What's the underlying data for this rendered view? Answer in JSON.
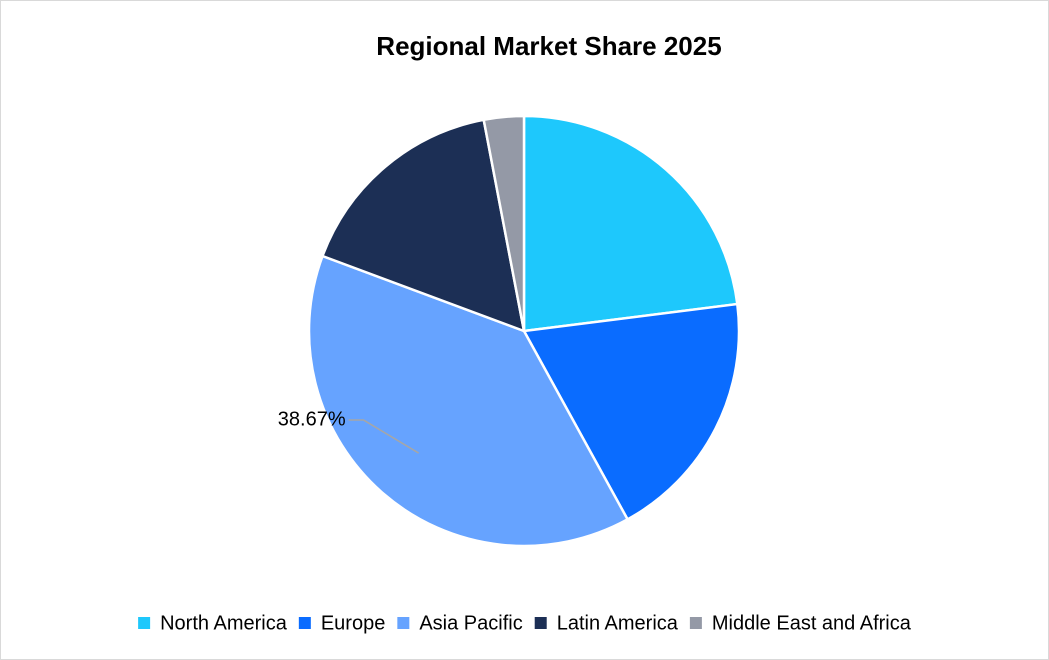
{
  "chart_data": {
    "type": "pie",
    "title": "Regional Market Share 2025",
    "categories": [
      "North America",
      "Europe",
      "Asia Pacific",
      "Latin America",
      "Middle East and Africa"
    ],
    "values": [
      23,
      19,
      38.67,
      16.33,
      3
    ],
    "value_labels": [
      null,
      null,
      "38.67%",
      null,
      null
    ],
    "colors": [
      "#1ec8fc",
      "#0a6cff",
      "#66a3ff",
      "#1c2f55",
      "#9499a6"
    ],
    "legend": "bottom"
  }
}
